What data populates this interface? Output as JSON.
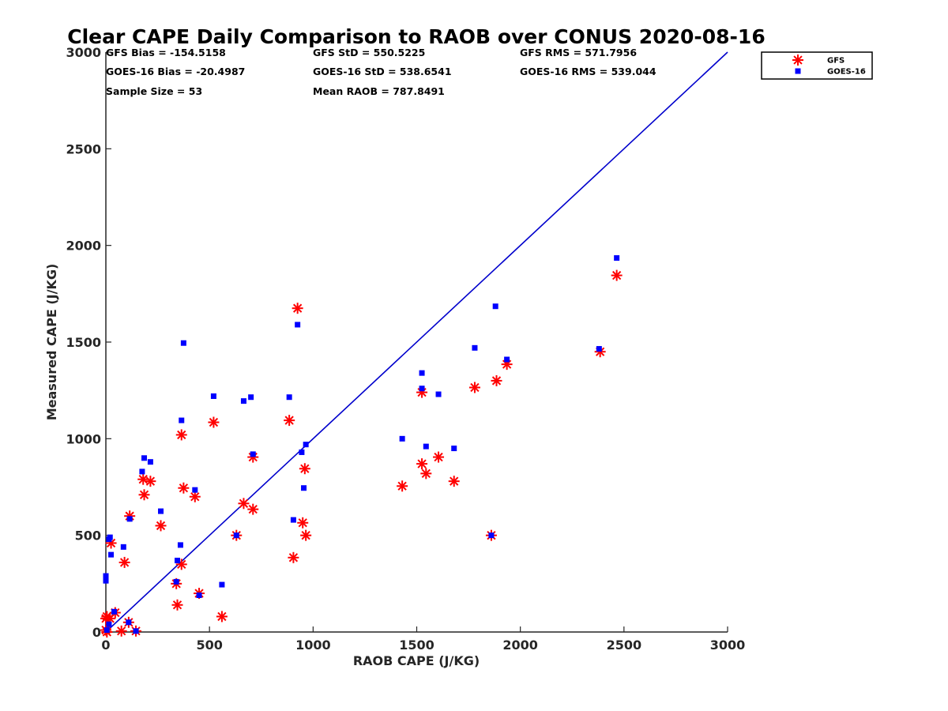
{
  "chart_data": {
    "type": "scatter",
    "title": "Clear CAPE Daily Comparison to RAOB over CONUS 2020-08-16",
    "xlabel": "RAOB CAPE (J/KG)",
    "ylabel": "Measured CAPE (J/KG)",
    "xlim": [
      0,
      3000
    ],
    "ylim": [
      0,
      3000
    ],
    "xticks": [
      0,
      500,
      1000,
      1500,
      2000,
      2500,
      3000
    ],
    "yticks": [
      0,
      500,
      1000,
      1500,
      2000,
      2500,
      3000
    ],
    "grid": false,
    "legend_position": "top-right",
    "reference_line": {
      "name": "1:1 line",
      "color": "#0000cc",
      "x": [
        0,
        3000
      ],
      "y": [
        0,
        3000
      ]
    },
    "stats": [
      [
        "GFS Bias = -154.5158",
        "GFS StD = 550.5225",
        "GFS RMS = 571.7956"
      ],
      [
        "GOES-16 Bias = -20.4987",
        "GOES-16 StD = 538.6541",
        "GOES-16 RMS = 539.044"
      ],
      [
        "Sample Size = 53",
        "Mean RAOB = 787.8491",
        ""
      ]
    ],
    "series": [
      {
        "name": "GFS",
        "marker": "asterisk",
        "color": "#ff0000",
        "points": [
          [
            0,
            70
          ],
          [
            5,
            80
          ],
          [
            0,
            10
          ],
          [
            5,
            0
          ],
          [
            20,
            70
          ],
          [
            25,
            460
          ],
          [
            45,
            100
          ],
          [
            75,
            5
          ],
          [
            90,
            360
          ],
          [
            110,
            50
          ],
          [
            115,
            600
          ],
          [
            145,
            5
          ],
          [
            180,
            790
          ],
          [
            185,
            710
          ],
          [
            215,
            780
          ],
          [
            265,
            550
          ],
          [
            340,
            250
          ],
          [
            345,
            140
          ],
          [
            365,
            1020
          ],
          [
            365,
            350
          ],
          [
            375,
            745
          ],
          [
            430,
            700
          ],
          [
            450,
            200
          ],
          [
            520,
            1085
          ],
          [
            560,
            80
          ],
          [
            630,
            500
          ],
          [
            665,
            665
          ],
          [
            710,
            905
          ],
          [
            710,
            635
          ],
          [
            885,
            1095
          ],
          [
            905,
            385
          ],
          [
            925,
            1675
          ],
          [
            950,
            565
          ],
          [
            960,
            845
          ],
          [
            965,
            500
          ],
          [
            1430,
            755
          ],
          [
            1525,
            1240
          ],
          [
            1525,
            870
          ],
          [
            1545,
            820
          ],
          [
            1605,
            905
          ],
          [
            1680,
            780
          ],
          [
            1780,
            1265
          ],
          [
            1860,
            500
          ],
          [
            1885,
            1300
          ],
          [
            1935,
            1385
          ],
          [
            2385,
            1450
          ],
          [
            2465,
            1845
          ]
        ]
      },
      {
        "name": "GOES-16",
        "marker": "square",
        "color": "#0000ff",
        "points": [
          [
            0,
            290
          ],
          [
            0,
            265
          ],
          [
            5,
            10
          ],
          [
            15,
            40
          ],
          [
            15,
            480
          ],
          [
            20,
            490
          ],
          [
            25,
            400
          ],
          [
            40,
            105
          ],
          [
            85,
            440
          ],
          [
            110,
            50
          ],
          [
            115,
            585
          ],
          [
            145,
            5
          ],
          [
            175,
            830
          ],
          [
            185,
            900
          ],
          [
            215,
            880
          ],
          [
            265,
            625
          ],
          [
            340,
            260
          ],
          [
            345,
            370
          ],
          [
            360,
            450
          ],
          [
            365,
            1095
          ],
          [
            375,
            1495
          ],
          [
            430,
            735
          ],
          [
            450,
            190
          ],
          [
            520,
            1220
          ],
          [
            560,
            245
          ],
          [
            630,
            500
          ],
          [
            665,
            1195
          ],
          [
            700,
            1215
          ],
          [
            710,
            920
          ],
          [
            885,
            1215
          ],
          [
            905,
            580
          ],
          [
            925,
            1590
          ],
          [
            945,
            930
          ],
          [
            955,
            745
          ],
          [
            965,
            970
          ],
          [
            1430,
            1000
          ],
          [
            1525,
            1340
          ],
          [
            1525,
            1260
          ],
          [
            1545,
            960
          ],
          [
            1605,
            1230
          ],
          [
            1680,
            950
          ],
          [
            1780,
            1470
          ],
          [
            1860,
            500
          ],
          [
            1880,
            1685
          ],
          [
            1935,
            1410
          ],
          [
            2380,
            1465
          ],
          [
            2465,
            1935
          ]
        ]
      }
    ]
  }
}
